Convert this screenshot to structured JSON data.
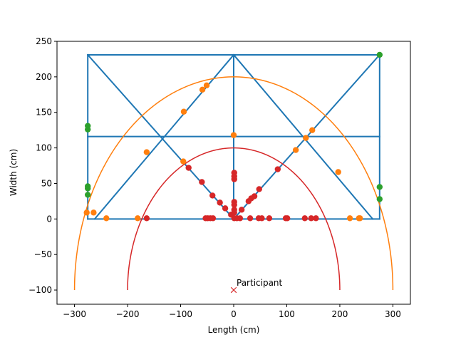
{
  "chart_data": {
    "type": "scatter",
    "title": "",
    "xlabel": "Length (cm)",
    "ylabel": "Width (cm)",
    "xlim": [
      -333,
      333
    ],
    "ylim": [
      -120,
      250
    ],
    "xticks": [
      -300,
      -200,
      -100,
      0,
      100,
      200,
      300
    ],
    "yticks": [
      -100,
      -50,
      0,
      50,
      100,
      150,
      200,
      250
    ],
    "grid": false,
    "legend": "none",
    "colors": {
      "frame": "#1f77b4",
      "outer_arc": "#ff7f0e",
      "inner_arc": "#d62728",
      "edge_points": "#2ca02c",
      "outer_points": "#ff7f0e",
      "inner_points": "#d62728",
      "participant": "#d62728"
    },
    "frame_segments": [
      [
        [
          -275,
          231
        ],
        [
          275,
          231
        ]
      ],
      [
        [
          -275,
          0
        ],
        [
          275,
          0
        ]
      ],
      [
        [
          -275,
          0
        ],
        [
          -275,
          231
        ]
      ],
      [
        [
          275,
          0
        ],
        [
          275,
          231
        ]
      ],
      [
        [
          0,
          0
        ],
        [
          0,
          231
        ]
      ],
      [
        [
          -275,
          116
        ],
        [
          275,
          116
        ]
      ],
      [
        [
          -275,
          231
        ],
        [
          0,
          0
        ]
      ],
      [
        [
          0,
          0
        ],
        [
          275,
          231
        ]
      ],
      [
        [
          -262,
          0
        ],
        [
          0,
          231
        ]
      ],
      [
        [
          0,
          231
        ],
        [
          262,
          0
        ]
      ]
    ],
    "arcs": [
      {
        "center": [
          0,
          -100
        ],
        "radius": 300,
        "color": "outer_arc"
      },
      {
        "center": [
          0,
          -100
        ],
        "radius": 200,
        "color": "inner_arc"
      }
    ],
    "series": [
      {
        "color": "edge_points",
        "points": [
          [
            -275,
            131
          ],
          [
            -275,
            126
          ],
          [
            -275,
            46
          ],
          [
            -275,
            43
          ],
          [
            -275,
            34
          ],
          [
            275,
            231
          ],
          [
            275,
            45
          ],
          [
            275,
            28
          ]
        ]
      },
      {
        "color": "outer_points",
        "points": [
          [
            -277,
            9
          ],
          [
            -264,
            9
          ],
          [
            -240,
            1
          ],
          [
            -181,
            1
          ],
          [
            -164,
            94
          ],
          [
            -94,
            151
          ],
          [
            -95,
            81
          ],
          [
            -59,
            182
          ],
          [
            -51,
            188
          ],
          [
            0,
            118
          ],
          [
            117,
            97
          ],
          [
            136,
            114
          ],
          [
            148,
            125
          ],
          [
            197,
            66
          ],
          [
            219,
            1
          ],
          [
            236,
            1
          ],
          [
            238,
            1
          ]
        ]
      },
      {
        "color": "inner_points",
        "points": [
          [
            -164,
            1
          ],
          [
            -85,
            72
          ],
          [
            -60,
            52
          ],
          [
            -53,
            1
          ],
          [
            -49,
            1
          ],
          [
            -44,
            1
          ],
          [
            -39,
            1
          ],
          [
            -40,
            33
          ],
          [
            -26,
            23
          ],
          [
            -16,
            15
          ],
          [
            -5,
            6
          ],
          [
            1,
            65
          ],
          [
            1,
            60
          ],
          [
            1,
            56
          ],
          [
            1,
            24
          ],
          [
            1,
            20
          ],
          [
            1,
            13
          ],
          [
            1,
            9
          ],
          [
            1,
            1
          ],
          [
            6,
            1
          ],
          [
            12,
            1
          ],
          [
            15,
            13
          ],
          [
            28,
            25
          ],
          [
            33,
            29
          ],
          [
            39,
            32
          ],
          [
            48,
            42
          ],
          [
            31,
            1
          ],
          [
            47,
            1
          ],
          [
            53,
            1
          ],
          [
            67,
            1
          ],
          [
            83,
            70
          ],
          [
            98,
            1
          ],
          [
            101,
            1
          ],
          [
            134,
            1
          ],
          [
            146,
            1
          ],
          [
            155,
            1
          ]
        ]
      }
    ],
    "annotations": [
      {
        "text": "Participant",
        "x": 0,
        "y": -100,
        "marker": "x",
        "color": "participant"
      }
    ]
  }
}
